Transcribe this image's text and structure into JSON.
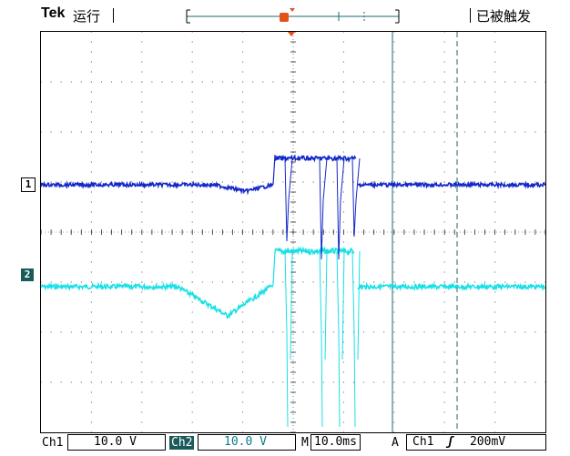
{
  "header": {
    "brand": "Tek",
    "run_state": "运行",
    "trigger_status": "已被触发"
  },
  "markers": {
    "ch1": "1",
    "ch2": "2",
    "trigger": "T"
  },
  "status_bar": {
    "ch1_label": "Ch1",
    "ch1_scale": "10.0 V",
    "ch2_label": "Ch2",
    "ch2_scale": "10.0 V",
    "time_prefix": "M",
    "time_scale": "10.0ms",
    "trig_prefix": "A",
    "trig_source": "Ch1",
    "trig_slope": "ʃ",
    "trig_level": "200mV"
  },
  "colors": {
    "ch1": "#1428c8",
    "ch2": "#19e0e6",
    "trigger": "#e2531a",
    "cursor": "#1a6a6a"
  }
}
